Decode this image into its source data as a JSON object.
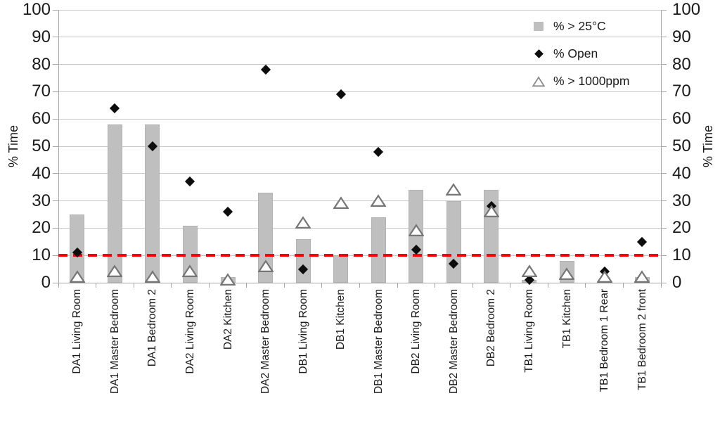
{
  "chart_data": {
    "type": "bar",
    "title": "",
    "xlabel": "",
    "ylabel_left": "% Time",
    "ylabel_right": "% Time",
    "ylim": [
      0,
      100
    ],
    "ytick_step": 10,
    "grid": true,
    "legend_position": "top-right",
    "categories": [
      "DA1 Living Room",
      "DA1 Master Bedroom",
      "DA1 Bedroom 2",
      "DA2 Living Room",
      "DA2 Kitchen",
      "DA2 Master Bedroom",
      "DB1 Living Room",
      "DB1 Kitchen",
      "DB1 Master Bedroom",
      "DB2 Living Room",
      "DB2 Master Bedroom",
      "DB2 Bedroom 2",
      "TB1 Living Room",
      "TB1 Kitchen",
      "TB1 Bedroom 1 Rear",
      "TB1 Bedroom 2 front"
    ],
    "series": [
      {
        "name": "% > 25°C",
        "type": "bar",
        "color": "#bfbfbf",
        "values": [
          25,
          58,
          58,
          21,
          2,
          33,
          16,
          10,
          24,
          34,
          30,
          34,
          1,
          8,
          0,
          2
        ]
      },
      {
        "name": "% Open",
        "type": "scatter",
        "marker": "diamond-filled",
        "color": "#0d0d0d",
        "values": [
          11,
          64,
          50,
          37,
          26,
          78,
          5,
          69,
          48,
          12,
          7,
          28,
          1,
          null,
          4,
          15
        ]
      },
      {
        "name": "% > 1000ppm",
        "type": "scatter",
        "marker": "triangle-open",
        "color": "#757575",
        "values": [
          2,
          4,
          2,
          4,
          1,
          6,
          22,
          29,
          30,
          19,
          34,
          26,
          4,
          3,
          2,
          2
        ]
      }
    ],
    "threshold_line": {
      "value": 10,
      "color": "#ff0000",
      "style": "dashed"
    }
  },
  "colors": {
    "gridline": "#c9c9c9",
    "axis": "#a6a6a6",
    "text": "#1a1a1a",
    "bar_fill": "#bfbfbf",
    "threshold_red": "#ff0000"
  }
}
